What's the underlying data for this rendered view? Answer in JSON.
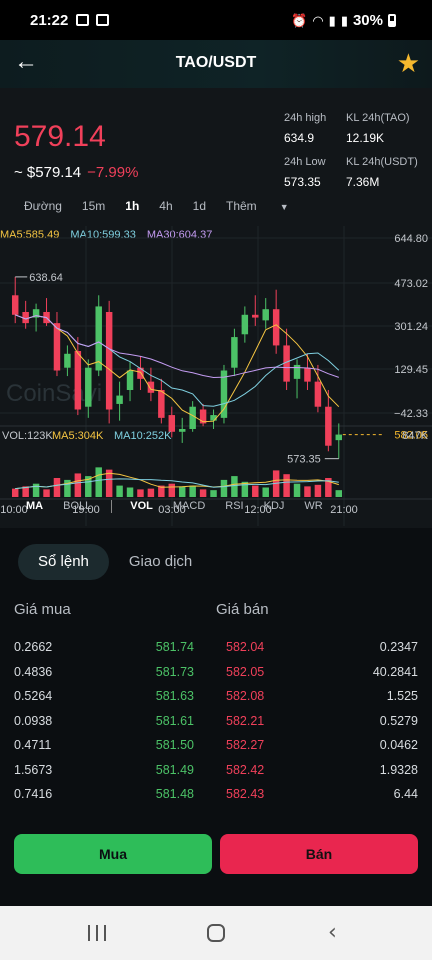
{
  "status": {
    "time": "21:22",
    "battery": "30%"
  },
  "header": {
    "pair": "TAO/USDT",
    "back_icon": "arrow-left-icon",
    "favorite_icon": "star-icon",
    "favorite_color": "#f5b82e"
  },
  "ticker": {
    "last_price": "579.14",
    "usd_price": "~ $579.14",
    "change": "−7.99%",
    "high_label": "24h high",
    "high_value": "634.9",
    "low_label": "24h Low",
    "low_value": "573.35",
    "vol_tao_label": "KL 24h(TAO)",
    "vol_tao_value": "12.19K",
    "vol_usdt_label": "KL 24h(USDT)",
    "vol_usdt_value": "7.36M"
  },
  "intervals": [
    "Đường",
    "15m",
    "1h",
    "4h",
    "1d",
    "Thêm"
  ],
  "active_interval": "1h",
  "ma_legend": {
    "ma5": "MA5:585.49",
    "ma10": "MA10:599.33",
    "ma30": "MA30:604.37"
  },
  "colors": {
    "up": "#4cc267",
    "down": "#f0405a",
    "ma5": "#f5c542",
    "ma10": "#7fd0e0",
    "ma30": "#c49cf2",
    "accent": "#f5b82e"
  },
  "chart_data": {
    "type": "candlestick",
    "y_axis_labels": [
      "644.80",
      "473.02",
      "301.24",
      "129.45",
      "−42.33"
    ],
    "current_price_label": "582.05",
    "high_marker": "638.64",
    "low_marker": "573.35",
    "volume_legend": {
      "vol": "VOL:123K",
      "ma5": "MA5:304K",
      "ma10": "MA10:252K"
    },
    "volume_axis_label": "847K",
    "x_labels": [
      "10:00",
      "19:00",
      "03:00",
      "12:00",
      "21:00"
    ],
    "watermark": "CoinSavi",
    "candles": [
      {
        "o": 632,
        "h": 638.6,
        "c": 625,
        "v": 0.22
      },
      {
        "o": 626,
        "h": 630,
        "l": 620,
        "c": 622,
        "v": 0.28
      },
      {
        "o": 624,
        "h": 629,
        "l": 619,
        "c": 627,
        "v": 0.35
      },
      {
        "o": 626,
        "h": 631,
        "l": 621,
        "c": 622,
        "v": 0.2
      },
      {
        "o": 622,
        "h": 626,
        "l": 603,
        "c": 605,
        "v": 0.5
      },
      {
        "o": 606,
        "h": 614,
        "l": 603,
        "c": 611,
        "v": 0.45
      },
      {
        "o": 612,
        "h": 617,
        "l": 589,
        "c": 591,
        "v": 0.62
      },
      {
        "o": 592,
        "h": 609,
        "l": 588,
        "c": 606,
        "v": 0.55
      },
      {
        "o": 605,
        "h": 632,
        "l": 603,
        "c": 628,
        "v": 0.78
      },
      {
        "o": 626,
        "h": 630,
        "l": 586,
        "c": 591,
        "v": 0.72
      },
      {
        "o": 593,
        "h": 601,
        "l": 587,
        "c": 596,
        "v": 0.3
      },
      {
        "o": 598,
        "h": 608,
        "l": 594,
        "c": 605,
        "v": 0.25
      },
      {
        "o": 606,
        "h": 610,
        "l": 598,
        "c": 602,
        "v": 0.2
      },
      {
        "o": 601,
        "h": 606,
        "l": 594,
        "c": 597,
        "v": 0.22
      },
      {
        "o": 598,
        "h": 602,
        "l": 586,
        "c": 588,
        "v": 0.3
      },
      {
        "o": 589,
        "h": 592,
        "l": 581,
        "c": 583,
        "v": 0.35
      },
      {
        "o": 583,
        "h": 588,
        "l": 579,
        "c": 584,
        "v": 0.28
      },
      {
        "o": 584,
        "h": 594,
        "l": 583,
        "c": 592,
        "v": 0.3
      },
      {
        "o": 591,
        "h": 593,
        "l": 585,
        "c": 586,
        "v": 0.2
      },
      {
        "o": 587,
        "h": 591,
        "l": 584,
        "c": 589,
        "v": 0.18
      },
      {
        "o": 588,
        "h": 607,
        "l": 586,
        "c": 605,
        "v": 0.45
      },
      {
        "o": 606,
        "h": 620,
        "l": 603,
        "c": 617,
        "v": 0.55
      },
      {
        "o": 618,
        "h": 628,
        "l": 615,
        "c": 625,
        "v": 0.4
      },
      {
        "o": 625,
        "h": 632,
        "l": 621,
        "c": 624,
        "v": 0.3
      },
      {
        "o": 623,
        "h": 631,
        "l": 620,
        "c": 627,
        "v": 0.25
      },
      {
        "o": 627,
        "h": 634,
        "l": 611,
        "c": 614,
        "v": 0.7
      },
      {
        "o": 614,
        "h": 620,
        "l": 598,
        "c": 601,
        "v": 0.6
      },
      {
        "o": 602,
        "h": 609,
        "l": 595,
        "c": 607,
        "v": 0.35
      },
      {
        "o": 606,
        "h": 611,
        "l": 598,
        "c": 601,
        "v": 0.28
      },
      {
        "o": 601,
        "h": 607,
        "l": 590,
        "c": 592,
        "v": 0.32
      },
      {
        "o": 592,
        "h": 598,
        "l": 576,
        "c": 578,
        "v": 0.5
      },
      {
        "o": 580,
        "h": 586,
        "l": 573.35,
        "c": 582,
        "v": 0.18
      }
    ]
  },
  "indicator_tabs": [
    "MA",
    "BOLL",
    "VOL",
    "MACD",
    "RSI",
    "KDJ",
    "WR"
  ],
  "orderbook": {
    "tabs": [
      "Sổ lệnh",
      "Giao dịch"
    ],
    "bid_header": "Giá mua",
    "ask_header": "Giá bán",
    "rows": [
      {
        "bid_qty": "0.2662",
        "bid": "581.74",
        "ask": "582.04",
        "ask_qty": "0.2347"
      },
      {
        "bid_qty": "0.4836",
        "bid": "581.73",
        "ask": "582.05",
        "ask_qty": "40.2841"
      },
      {
        "bid_qty": "0.5264",
        "bid": "581.63",
        "ask": "582.08",
        "ask_qty": "1.525"
      },
      {
        "bid_qty": "0.0938",
        "bid": "581.61",
        "ask": "582.21",
        "ask_qty": "0.5279"
      },
      {
        "bid_qty": "0.4711",
        "bid": "581.50",
        "ask": "582.27",
        "ask_qty": "0.0462"
      },
      {
        "bid_qty": "1.5673",
        "bid": "581.49",
        "ask": "582.42",
        "ask_qty": "1.9328"
      },
      {
        "bid_qty": "0.7416",
        "bid": "581.48",
        "ask": "582.43",
        "ask_qty": "6.44"
      }
    ]
  },
  "actions": {
    "buy": "Mua",
    "sell": "Bán"
  }
}
